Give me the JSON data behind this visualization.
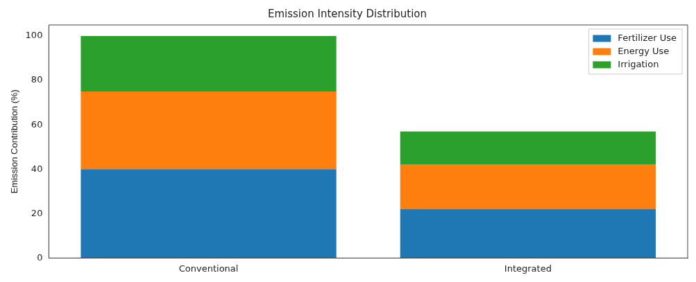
{
  "chart_data": {
    "type": "bar",
    "title": "Emission Intensity Distribution",
    "ylabel": "Emission Contribution (%)",
    "categories": [
      "Conventional",
      "Integrated"
    ],
    "stacked": true,
    "series": [
      {
        "name": "Fertilizer Use",
        "color": "#1f77b4",
        "values": [
          40,
          22
        ]
      },
      {
        "name": "Energy Use",
        "color": "#ff7f0e",
        "values": [
          35,
          20
        ]
      },
      {
        "name": "Irrigation",
        "color": "#2ca02c",
        "values": [
          25,
          15
        ]
      }
    ],
    "ylim": [
      0,
      105
    ],
    "yticks": [
      0,
      20,
      40,
      60,
      80,
      100
    ],
    "grid": false,
    "legend": "top right"
  }
}
